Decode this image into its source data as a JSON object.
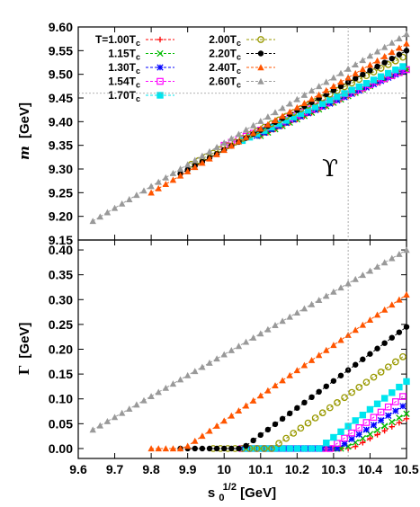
{
  "chart_data": {
    "type": "line",
    "legend_position": "top-left",
    "grid": false,
    "x": {
      "label": "s0^(1/2) [GeV]",
      "label_base": "s",
      "label_sub": "0",
      "label_sup": "1/2",
      "label_unit": " [GeV]",
      "range": [
        9.6,
        10.5
      ],
      "ticks": [
        "9.6",
        "9.7",
        "9.8",
        "9.9",
        "10",
        "10.1",
        "10.2",
        "10.3",
        "10.4",
        "10.5"
      ]
    },
    "reference_x": 10.34,
    "reference_y": 9.46,
    "annotation": "ϒ",
    "panels": [
      {
        "name": "mass",
        "ylabel_symbol": "m",
        "ylabel_unit": "[GeV]",
        "ylim": [
          9.15,
          9.6
        ],
        "yticks": [
          "9.15",
          "9.20",
          "9.25",
          "9.30",
          "9.35",
          "9.40",
          "9.45",
          "9.50",
          "9.55",
          "9.60"
        ]
      },
      {
        "name": "width",
        "ylabel_symbol": "Γ",
        "ylabel_unit": "[GeV]",
        "ylim": [
          -0.02,
          0.42
        ],
        "yticks": [
          "0.00",
          "0.05",
          "0.10",
          "0.15",
          "0.20",
          "0.25",
          "0.30",
          "0.35",
          "0.40"
        ]
      }
    ],
    "series": [
      {
        "name": "T=1.00T",
        "sub": "c",
        "color": "#ff0000",
        "marker": "plus",
        "mass": {
          "x0": 10.1,
          "x1": 10.5,
          "y0": 9.37,
          "y1": 9.51,
          "curv": 0.0
        },
        "width": {
          "x0": 10.1,
          "x1": 10.5,
          "onset": 10.35,
          "y1": 0.06,
          "curv": 0.0
        }
      },
      {
        "name": "1.15T",
        "sub": "c",
        "color": "#00bb00",
        "marker": "cross",
        "mass": {
          "x0": 10.1,
          "x1": 10.5,
          "y0": 9.37,
          "y1": 9.51,
          "curv": 0.0
        },
        "width": {
          "x0": 10.1,
          "x1": 10.5,
          "onset": 10.33,
          "y1": 0.07,
          "curv": 0.0
        }
      },
      {
        "name": "1.30T",
        "sub": "c",
        "color": "#0000ff",
        "marker": "star",
        "mass": {
          "x0": 10.09,
          "x1": 10.5,
          "y0": 9.37,
          "y1": 9.51,
          "curv": 0.0
        },
        "width": {
          "x0": 10.05,
          "x1": 10.5,
          "onset": 10.31,
          "y1": 0.09,
          "curv": 0.0
        }
      },
      {
        "name": "1.54T",
        "sub": "c",
        "color": "#ff00ff",
        "marker": "square",
        "mass": {
          "x0": 10.0,
          "x1": 10.5,
          "y0": 9.35,
          "y1": 9.51,
          "curv": 0.0
        },
        "width": {
          "x0": 10.05,
          "x1": 10.5,
          "onset": 10.29,
          "y1": 0.11,
          "curv": 0.0
        }
      },
      {
        "name": "1.70T",
        "sub": "c",
        "color": "#00e5ee",
        "marker": "filledsquare",
        "mass": {
          "x0": 10.05,
          "x1": 10.5,
          "y0": 9.36,
          "y1": 9.52,
          "curv": 0.0
        },
        "width": {
          "x0": 10.06,
          "x1": 10.5,
          "onset": 10.26,
          "y1": 0.135,
          "curv": 0.0
        }
      },
      {
        "name": "2.00T",
        "sub": "c",
        "color": "#999900",
        "marker": "circle",
        "mass": {
          "x0": 9.91,
          "x1": 10.5,
          "y0": 9.31,
          "y1": 9.54,
          "curv": 0.0
        },
        "width": {
          "x0": 9.97,
          "x1": 10.5,
          "onset": 10.13,
          "y1": 0.19,
          "curv": 0.0
        }
      },
      {
        "name": "2.20T",
        "sub": "c",
        "color": "#000000",
        "marker": "filledcircle",
        "mass": {
          "x0": 9.88,
          "x1": 10.5,
          "y0": 9.29,
          "y1": 9.55,
          "curv": 0.0
        },
        "width": {
          "x0": 9.88,
          "x1": 10.5,
          "onset": 10.05,
          "y1": 0.245,
          "curv": 0.0
        }
      },
      {
        "name": "2.40T",
        "sub": "c",
        "color": "#ff5500",
        "marker": "triangle",
        "mass": {
          "x0": 9.8,
          "x1": 10.5,
          "y0": 9.25,
          "y1": 9.565,
          "curv": 0.0
        },
        "width": {
          "x0": 9.8,
          "x1": 10.5,
          "onset": 9.89,
          "y1": 0.31,
          "curv": 0.0
        }
      },
      {
        "name": "2.60T",
        "sub": "c",
        "color": "#999999",
        "marker": "triangle",
        "mass": {
          "x0": 9.64,
          "x1": 10.5,
          "y0": 9.19,
          "y1": 9.585,
          "curv": 0.0
        },
        "width": {
          "x0": 9.64,
          "x1": 10.5,
          "onset": 9.55,
          "y1": 0.4,
          "curv": 0.0
        }
      }
    ]
  }
}
